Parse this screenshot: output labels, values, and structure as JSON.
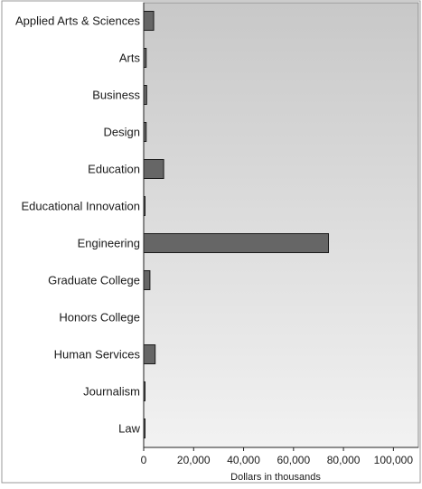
{
  "chart_data": {
    "type": "bar",
    "orientation": "horizontal",
    "categories": [
      "Applied Arts & Sciences",
      "Arts",
      "Business",
      "Design",
      "Education",
      "Educational Innovation",
      "Engineering",
      "Graduate College",
      "Honors College",
      "Human Services",
      "Journalism",
      "Law"
    ],
    "values": [
      4000,
      1000,
      1200,
      1000,
      8000,
      400,
      74000,
      2500,
      0,
      4600,
      300,
      300
    ],
    "xlabel": "Dollars in thousands",
    "xlim": [
      0,
      110000
    ],
    "xticks": [
      0,
      20000,
      40000,
      60000,
      80000,
      100000
    ],
    "xtick_labels": [
      "0",
      "20,000",
      "40,000",
      "60,000",
      "80,000",
      "100,000"
    ],
    "grid": false,
    "colors": {
      "bar_fill": "#666666",
      "bar_stroke": "#1a1a1a",
      "plot_bg_top": "#c8c8c8",
      "plot_bg_bottom": "#f2f2f2",
      "frame": "#888888"
    }
  }
}
